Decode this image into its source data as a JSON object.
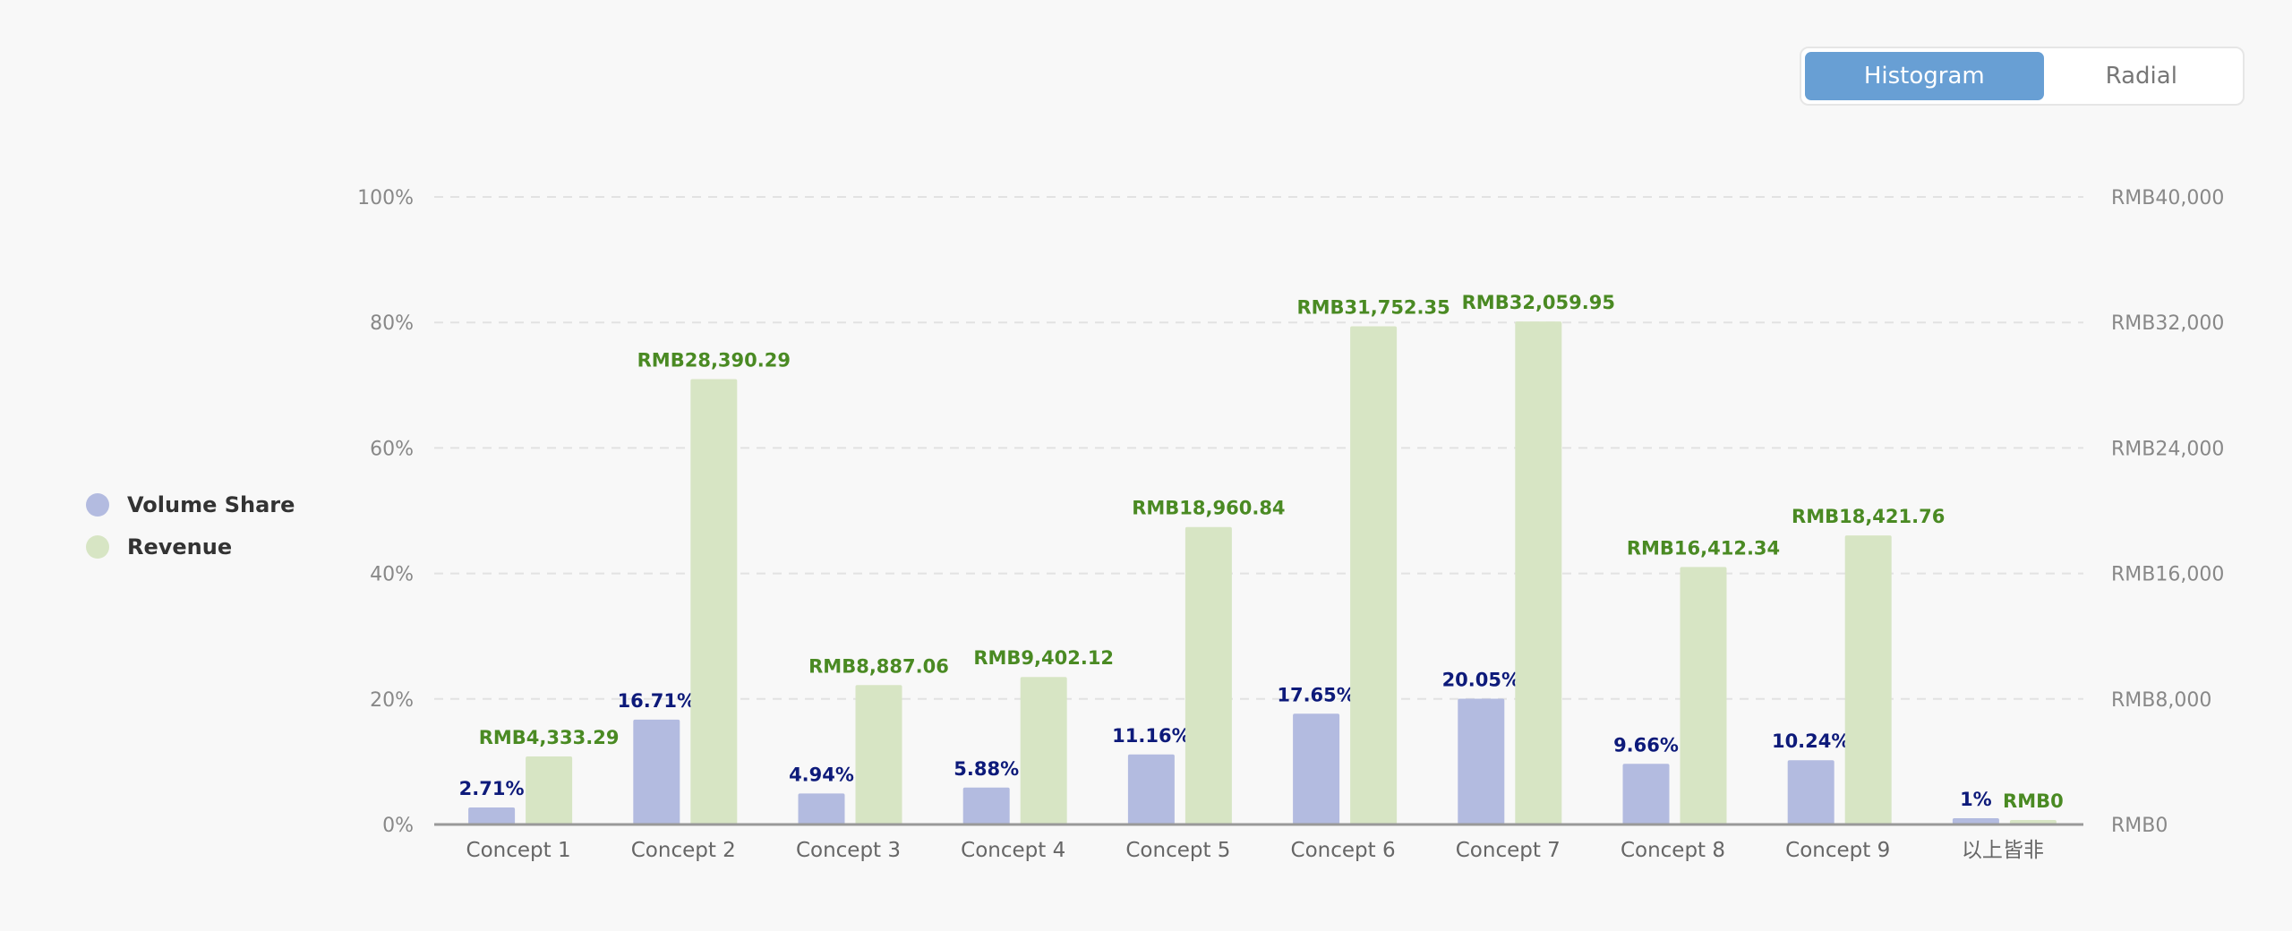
{
  "toggle": {
    "options": [
      "Histogram",
      "Radial"
    ],
    "selected": "Histogram"
  },
  "chart_data": {
    "type": "bar",
    "categories": [
      "Concept 1",
      "Concept 2",
      "Concept 3",
      "Concept 4",
      "Concept 5",
      "Concept 6",
      "Concept 7",
      "Concept 8",
      "Concept 9",
      "以上皆非"
    ],
    "series": [
      {
        "name": "Volume Share",
        "axis": "left",
        "color": "#b3bbe0",
        "label_color": "#0d1a7a",
        "values": [
          2.71,
          16.71,
          4.94,
          5.88,
          11.16,
          17.65,
          20.05,
          9.66,
          10.24,
          1
        ],
        "labels": [
          "2.71%",
          "16.71%",
          "4.94%",
          "5.88%",
          "11.16%",
          "17.65%",
          "20.05%",
          "9.66%",
          "10.24%",
          "1%"
        ]
      },
      {
        "name": "Revenue",
        "axis": "right",
        "color": "#d7e5c4",
        "label_color": "#4a8a23",
        "values": [
          4333.29,
          28390.29,
          8887.06,
          9402.12,
          18960.84,
          31752.35,
          32059.95,
          16412.34,
          18421.76,
          0
        ],
        "labels": [
          "RMB4,333.29",
          "RMB28,390.29",
          "RMB8,887.06",
          "RMB9,402.12",
          "RMB18,960.84",
          "RMB31,752.35",
          "RMB32,059.95",
          "RMB16,412.34",
          "RMB18,421.76",
          "RMB0"
        ]
      }
    ],
    "y_left": {
      "range": [
        0,
        100
      ],
      "ticks": [
        "0%",
        "20%",
        "40%",
        "60%",
        "80%",
        "100%"
      ]
    },
    "y_right": {
      "range": [
        0,
        40000
      ],
      "ticks": [
        "RMB0",
        "RMB8,000",
        "RMB16,000",
        "RMB24,000",
        "RMB32,000",
        "RMB40,000"
      ]
    },
    "grid": true,
    "legend_position": "left"
  }
}
